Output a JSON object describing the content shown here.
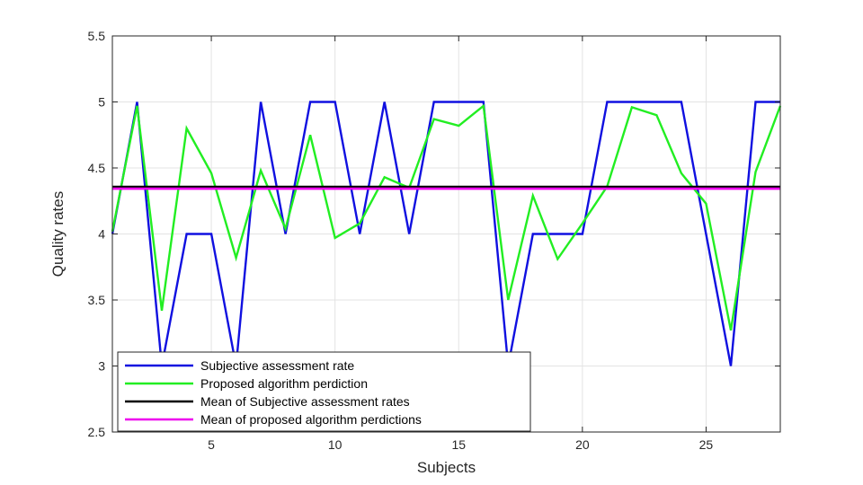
{
  "chart_data": {
    "type": "line",
    "title": "",
    "xlabel": "Subjects",
    "ylabel": "Quality rates",
    "xlim": [
      1,
      28
    ],
    "ylim": [
      2.5,
      5.5
    ],
    "xticks": [
      5,
      10,
      15,
      20,
      25
    ],
    "yticks": [
      2.5,
      3,
      3.5,
      4,
      4.5,
      5,
      5.5
    ],
    "grid": true,
    "legend_position": "bottom-left",
    "x": [
      1,
      2,
      3,
      4,
      5,
      6,
      7,
      8,
      9,
      10,
      11,
      12,
      13,
      14,
      15,
      16,
      17,
      18,
      19,
      20,
      21,
      22,
      23,
      24,
      25,
      26,
      27,
      28
    ],
    "series": [
      {
        "name": "Subjective assessment rate",
        "color": "#1010e0",
        "values": [
          4,
          5,
          3,
          4,
          4,
          3,
          5,
          4,
          5,
          5,
          4,
          5,
          4,
          5,
          5,
          5,
          3,
          4,
          4,
          4,
          5,
          5,
          5,
          5,
          4,
          3,
          5,
          5
        ]
      },
      {
        "name": "Proposed algorithm perdiction",
        "color": "#22ee22",
        "values": [
          4.02,
          4.97,
          3.42,
          4.8,
          4.46,
          3.82,
          4.48,
          4.04,
          4.75,
          3.97,
          4.08,
          4.43,
          4.35,
          4.87,
          4.82,
          4.97,
          3.5,
          4.29,
          3.81,
          4.08,
          4.36,
          4.96,
          4.9,
          4.46,
          4.23,
          3.27,
          4.47,
          4.97
        ]
      },
      {
        "name": "Mean of Subjective assessment rates",
        "color": "#000000",
        "constant": 4.357
      },
      {
        "name": "Mean of proposed algorithm perdictions",
        "color": "#ee00ee",
        "constant": 4.343
      }
    ]
  }
}
